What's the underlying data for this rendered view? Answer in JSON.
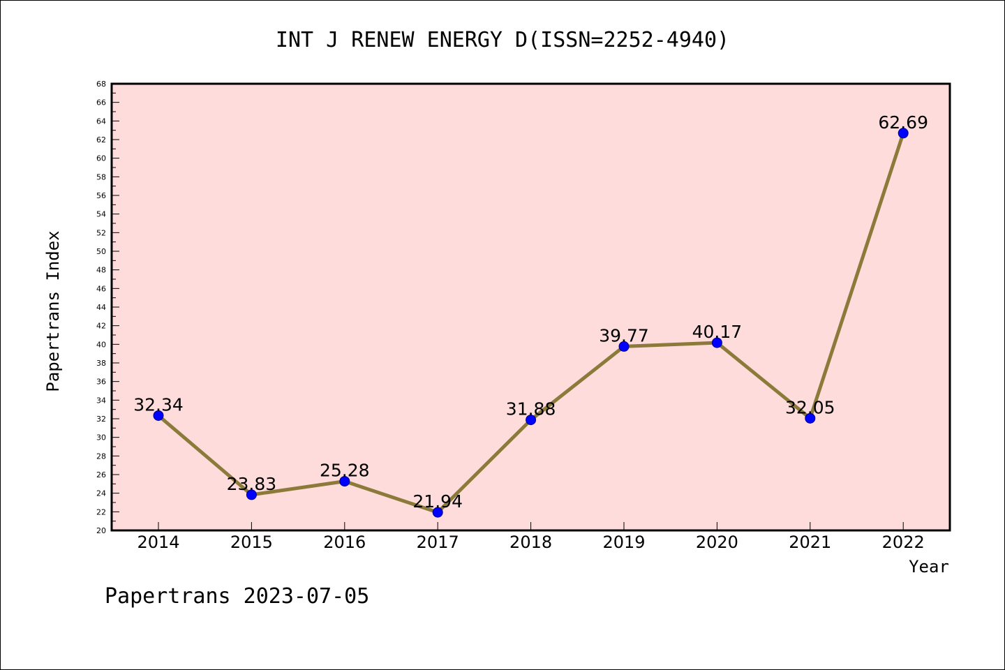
{
  "chart_data": {
    "type": "line",
    "title": "INT J RENEW ENERGY D(ISSN=2252-4940)",
    "xlabel": "Year",
    "ylabel": "Papertrans Index",
    "categories": [
      "2014",
      "2015",
      "2016",
      "2017",
      "2018",
      "2019",
      "2020",
      "2021",
      "2022"
    ],
    "values": [
      32.34,
      23.83,
      25.28,
      21.94,
      31.88,
      39.77,
      40.17,
      32.05,
      62.69
    ],
    "data_labels": [
      "32.34",
      "23.83",
      "25.28",
      "21.94",
      "31.88",
      "39.77",
      "40.17",
      "32.05",
      "62.69"
    ],
    "ylim": [
      20,
      68
    ],
    "y_ticks": [
      "20",
      "22",
      "24",
      "26",
      "28",
      "30",
      "32",
      "34",
      "36",
      "38",
      "40",
      "42",
      "44",
      "46",
      "48",
      "50",
      "52",
      "54",
      "56",
      "58",
      "60",
      "62",
      "64",
      "66",
      "68"
    ],
    "grid": false,
    "colors": {
      "plot_background": "#ffdcdc",
      "line": "#8b7a3a",
      "marker": "#0000ff"
    }
  },
  "footer": {
    "text": "Papertrans 2023-07-05"
  }
}
